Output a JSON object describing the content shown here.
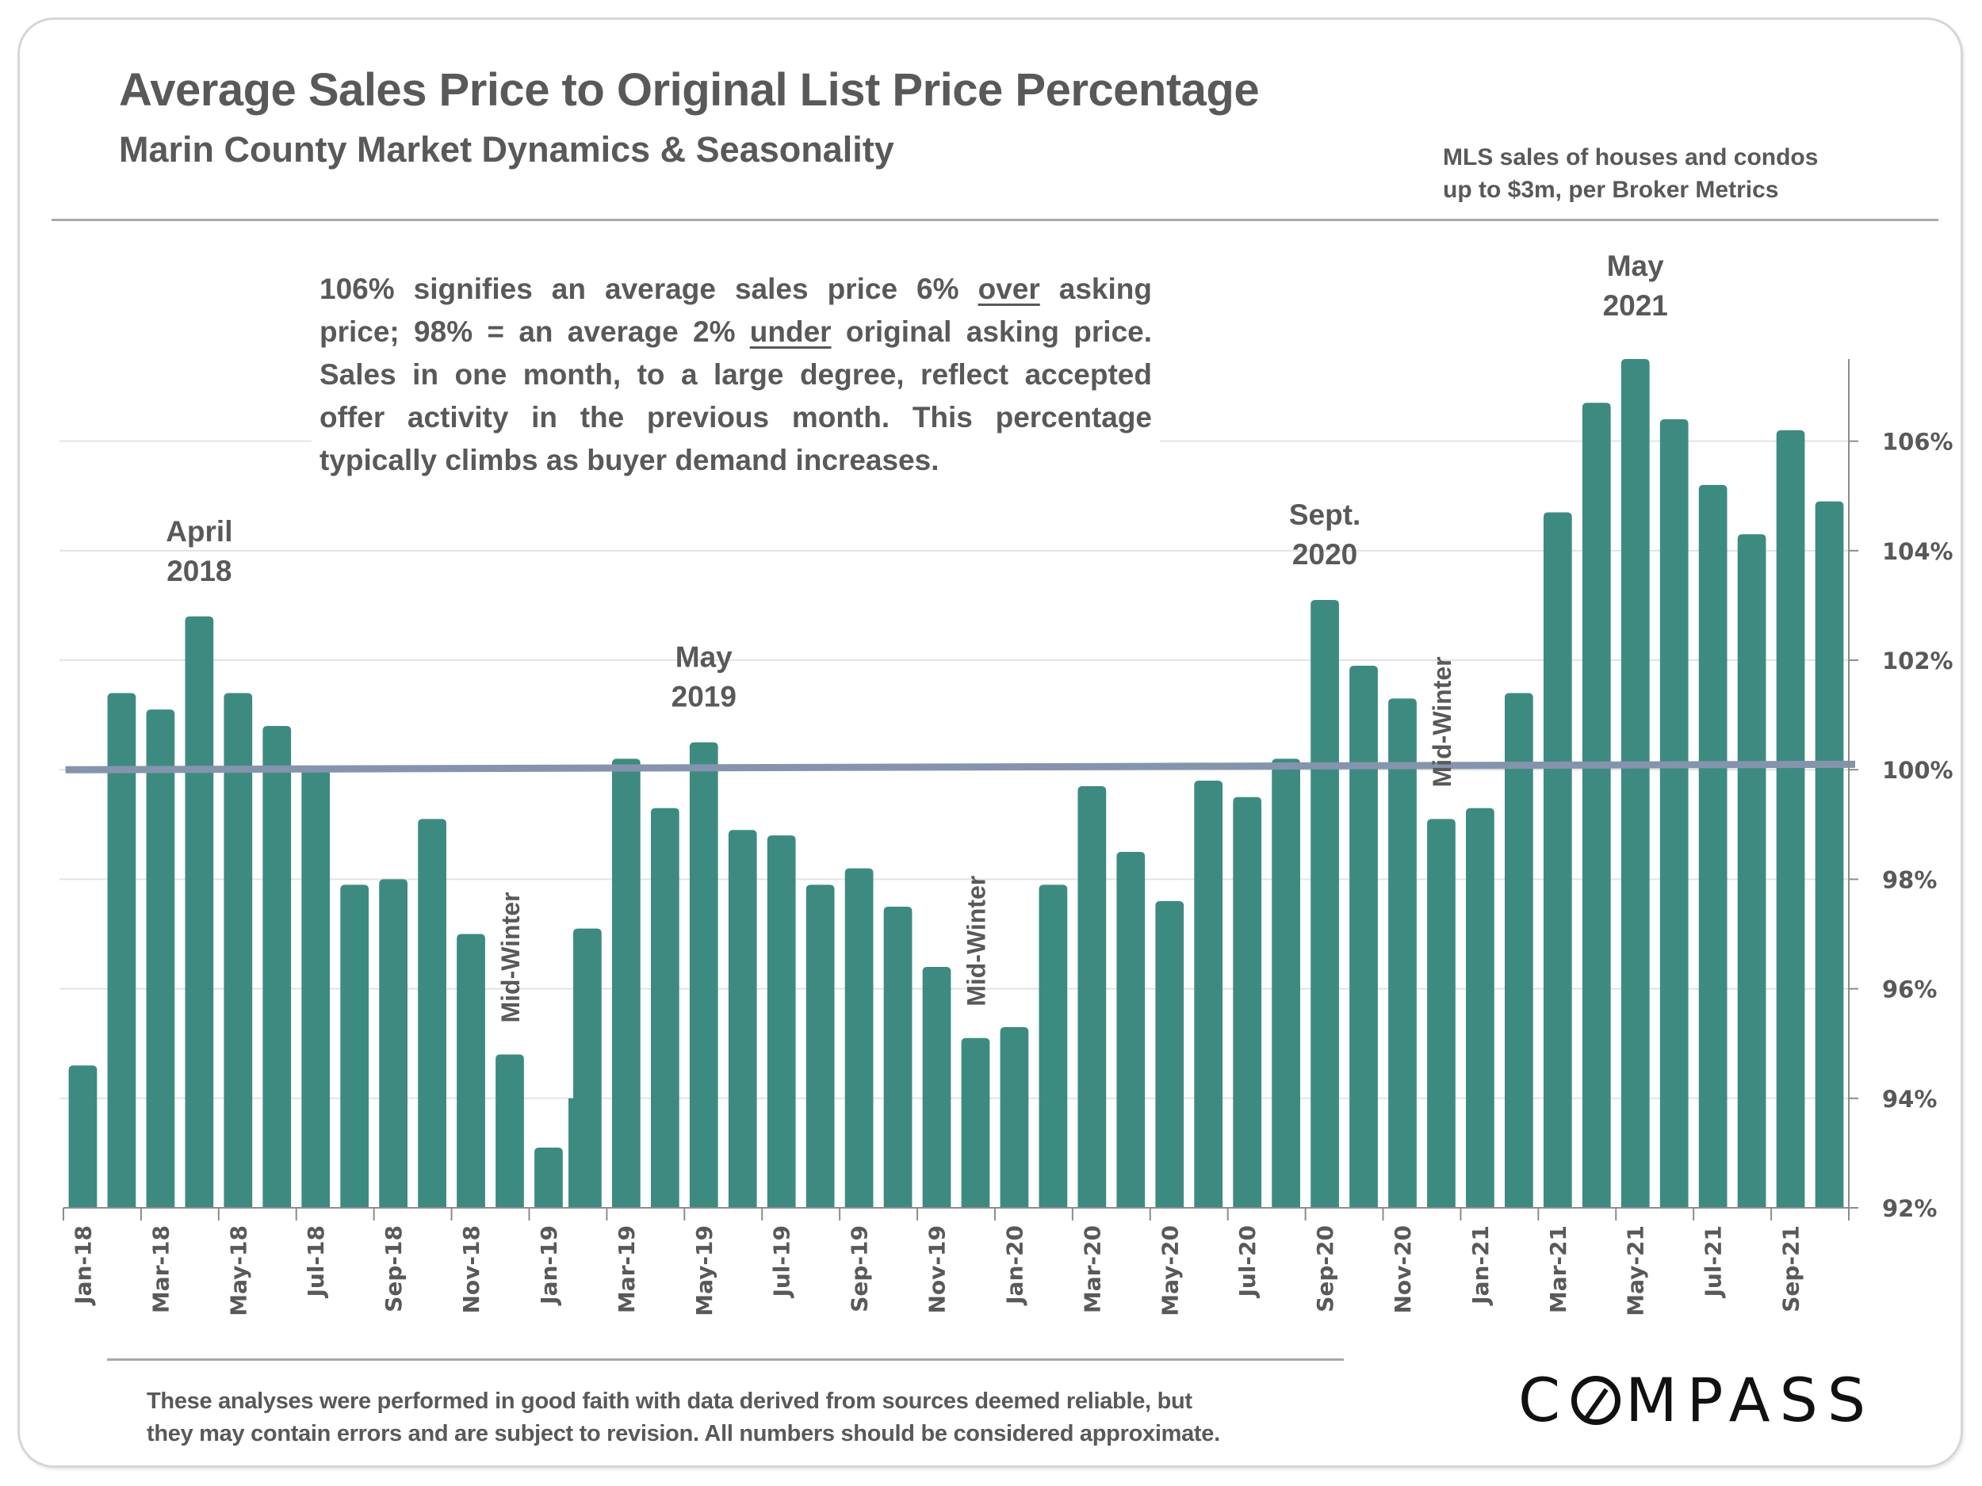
{
  "header": {
    "title": "Average Sales Price to Original List Price Percentage",
    "subtitle": "Marin County Market Dynamics & Seasonality",
    "source_line1": "MLS sales of houses and condos",
    "source_line2": "up to $3m, per Broker Metrics"
  },
  "note": {
    "part1": "106% signifies an average sales price 6% ",
    "emph1": "over",
    "part2": " asking price; 98% = an average 2% ",
    "emph2": "under",
    "part3": " original asking price. Sales in one month, to a large degree, reflect accepted offer activity in the previous month. This percentage typically climbs as buyer demand increases."
  },
  "footer": {
    "disclaimer_line1": "These analyses were performed in good faith with data derived from sources deemed reliable, but",
    "disclaimer_line2": "they may contain errors and are subject to revision. All numbers should be considered  approximate.",
    "logo_pre": "C",
    "logo_post": "MPASS"
  },
  "colors": {
    "bar": "#3d8b80",
    "reference_line": "#8594ad",
    "text": "#595959",
    "grid": "#e3e3e3",
    "axis": "#8c8c8c"
  },
  "chart_data": {
    "type": "bar",
    "title": "Average Sales Price to Original List Price Percentage",
    "xlabel": "",
    "ylabel": "",
    "y_axis_side": "right",
    "ylim": [
      92,
      107.5
    ],
    "yticks": [
      92,
      94,
      96,
      98,
      100,
      102,
      104,
      106
    ],
    "ytick_labels": [
      "92%",
      "94%",
      "96%",
      "98%",
      "100%",
      "102%",
      "104%",
      "106%"
    ],
    "grid": true,
    "categories": [
      "Jan-18",
      "Feb-18",
      "Mar-18",
      "Apr-18",
      "May-18",
      "Jun-18",
      "Jul-18",
      "Aug-18",
      "Sep-18",
      "Oct-18",
      "Nov-18",
      "Dec-18",
      "Jan-19",
      "Feb-19",
      "Mar-19",
      "Apr-19",
      "May-19",
      "Jun-19",
      "Jul-19",
      "Aug-19",
      "Sep-19",
      "Oct-19",
      "Nov-19",
      "Dec-19",
      "Jan-20",
      "Feb-20",
      "Mar-20",
      "Apr-20",
      "May-20",
      "Jun-20",
      "Jul-20",
      "Aug-20",
      "Sep-20",
      "Oct-20",
      "Nov-20",
      "Dec-20",
      "Jan-21",
      "Feb-21",
      "Mar-21",
      "Apr-21",
      "May-21",
      "Jun-21",
      "Jul-21",
      "Aug-21",
      "Sep-21",
      "Oct-21"
    ],
    "xtick_labels_shown": [
      "Jan-18",
      "Mar-18",
      "May-18",
      "Jul-18",
      "Sep-18",
      "Nov-18",
      "Jan-19",
      "Mar-19",
      "May-19",
      "Jul-19",
      "Sep-19",
      "Nov-19",
      "Jan-20",
      "Mar-20",
      "May-20",
      "Jul-20",
      "Sep-20",
      "Nov-20",
      "Jan-21",
      "Mar-21",
      "May-21",
      "Jul-21",
      "Sep-21"
    ],
    "series": [
      {
        "name": "Avg Sales Price % of Original List Price",
        "type": "bar",
        "values": [
          94.6,
          101.4,
          101.1,
          102.8,
          101.4,
          100.8,
          100.0,
          97.9,
          98.0,
          99.1,
          97.0,
          94.8,
          93.1,
          97.1,
          100.2,
          99.3,
          100.5,
          98.9,
          98.8,
          97.9,
          98.2,
          97.5,
          96.4,
          95.1,
          95.3,
          97.9,
          99.7,
          98.5,
          97.6,
          99.8,
          99.5,
          100.2,
          103.1,
          101.9,
          101.3,
          99.1,
          99.3,
          101.4,
          104.7,
          106.7,
          107.5,
          106.4,
          105.2,
          104.3,
          106.2,
          104.9
        ]
      },
      {
        "name": "Trend line",
        "type": "line",
        "x": [
          "Jan-18",
          "Oct-21"
        ],
        "values": [
          100.0,
          100.1
        ]
      }
    ],
    "annotations": [
      {
        "text_line1": "April",
        "text_line2": "2018",
        "category": "Apr-18"
      },
      {
        "text_line1": "May",
        "text_line2": "2019",
        "category": "May-19"
      },
      {
        "text_line1": "Sept.",
        "text_line2": "2020",
        "category": "Sep-20"
      },
      {
        "text_line1": "May",
        "text_line2": "2021",
        "category": "May-21"
      },
      {
        "text": "Mid-Winter",
        "category": "Dec-18",
        "orientation": "vertical"
      },
      {
        "text": "Mid-Winter",
        "category": "Dec-19",
        "orientation": "vertical"
      },
      {
        "text": "Mid-Winter",
        "category": "Dec-20",
        "orientation": "vertical"
      }
    ]
  }
}
